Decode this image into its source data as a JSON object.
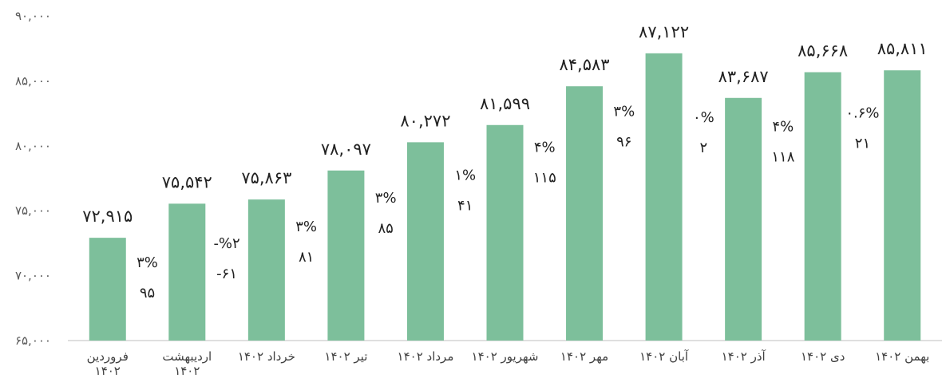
{
  "colors": {
    "bar": "#7DBF9B",
    "axis": "#BFBFBF",
    "text": "#222222",
    "negative": "#FF0000"
  },
  "chart_data": {
    "type": "bar",
    "ylim": [
      65000,
      90000
    ],
    "yticks": [
      65000,
      70000,
      75000,
      80000,
      85000,
      90000
    ],
    "ytick_labels": [
      "۶۵,۰۰۰",
      "۷۰,۰۰۰",
      "۷۵,۰۰۰",
      "۸۰,۰۰۰",
      "۸۵,۰۰۰",
      "۹۰,۰۰۰"
    ],
    "grid": false,
    "categories": [
      [
        "فروردین",
        "۱۴۰۲"
      ],
      [
        "اردیبهشت",
        "۱۴۰۲"
      ],
      [
        "خرداد ۱۴۰۲"
      ],
      [
        "تیر ۱۴۰۲"
      ],
      [
        "مرداد ۱۴۰۲"
      ],
      [
        "شهریور ۱۴۰۲"
      ],
      [
        "مهر ۱۴۰۲"
      ],
      [
        "آبان ۱۴۰۲"
      ],
      [
        "آذر ۱۴۰۲"
      ],
      [
        "دی ۱۴۰۲"
      ],
      [
        "بهمن ۱۴۰۲"
      ]
    ],
    "values": [
      72915,
      75542,
      75863,
      78097,
      80272,
      81599,
      84583,
      87122,
      83687,
      85668,
      85811
    ],
    "value_labels": [
      "۷۲,۹۱۵",
      "۷۵,۵۴۲",
      "۷۵,۸۶۳",
      "۷۸,۰۹۷",
      "۸۰,۲۷۲",
      "۸۱,۵۹۹",
      "۸۴,۵۸۳",
      "۸۷,۱۲۲",
      "۸۳,۶۸۷",
      "۸۵,۶۶۸",
      "۸۵,۸۱۱"
    ],
    "change_labels": [
      {
        "line1": "۳%",
        "line2": "۹۵",
        "negative": false
      },
      {
        "line1": "-%۲",
        "line2": "-۶۱",
        "negative": true
      },
      {
        "line1": "۳%",
        "line2": "۸۱",
        "negative": false
      },
      {
        "line1": "۳%",
        "line2": "۸۵",
        "negative": false
      },
      {
        "line1": "۱%",
        "line2": "۴۱",
        "negative": false
      },
      {
        "line1": "۴%",
        "line2": "۱۱۵",
        "negative": false
      },
      {
        "line1": "۳%",
        "line2": "۹۶",
        "negative": false
      },
      {
        "line1": "۰%",
        "line2": "۲",
        "negative": false
      },
      {
        "line1": "۴%",
        "line2": "۱۱۸",
        "negative": false
      },
      {
        "line1": "۰.۶%",
        "line2": "۲۱",
        "negative": false
      }
    ]
  }
}
